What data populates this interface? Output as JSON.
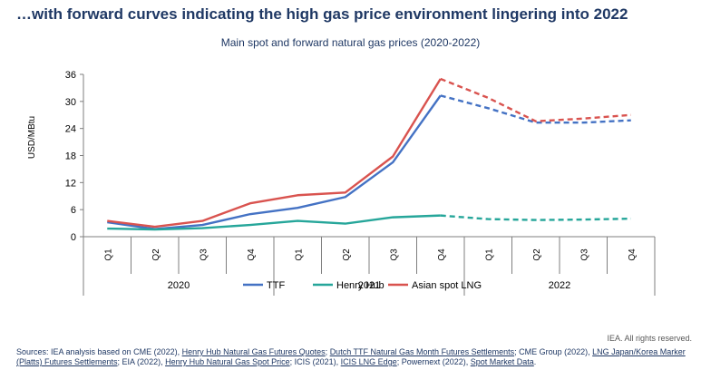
{
  "headline": "…with forward curves indicating the high gas price environment lingering into 2022",
  "credit": "IEA. All rights reserved.",
  "sources": {
    "prefix": "Sources: IEA analysis based on CME (2022), ",
    "link1": "Henry Hub Natural Gas Futures Quotes",
    "sep1": "; ",
    "link2": "Dutch TTF Natural Gas Month Futures Settlements",
    "mid1": "; CME Group (2022), ",
    "link3": "LNG Japan/Korea Marker (Platts) Futures Settlements",
    "mid2": "; EIA (2022), ",
    "link4": "Henry Hub Natural Gas Spot Price",
    "mid3": "; ICIS (2021), ",
    "link5": "ICIS LNG Edge",
    "mid4": "; Powernext (2022), ",
    "link6": "Spot Market Data",
    "suffix": "."
  },
  "chart_data": {
    "type": "line",
    "title": "Main spot and forward natural gas prices (2020-2022)",
    "ylabel": "USD/MBtu",
    "xlabel": "",
    "ylim": [
      0,
      36
    ],
    "yticks": [
      0,
      6,
      12,
      18,
      24,
      30,
      36
    ],
    "grid": false,
    "legend_position": "bottom",
    "categories": [
      "Q1",
      "Q2",
      "Q3",
      "Q4",
      "Q1",
      "Q2",
      "Q3",
      "Q4",
      "Q1",
      "Q2",
      "Q3",
      "Q4"
    ],
    "year_groups": [
      {
        "label": "2020",
        "quarters": 4
      },
      {
        "label": "2021",
        "quarters": 4
      },
      {
        "label": "2022",
        "quarters": 4
      }
    ],
    "forward_start_index": 7,
    "series": [
      {
        "name": "TTF",
        "color": "#4472c4",
        "values": [
          3.2,
          1.7,
          2.6,
          5.0,
          6.4,
          8.8,
          16.5,
          31.3,
          28.5,
          25.3,
          25.3,
          25.8
        ]
      },
      {
        "name": "Henry Hub",
        "color": "#26a69a",
        "values": [
          1.8,
          1.6,
          1.9,
          2.6,
          3.5,
          2.9,
          4.3,
          4.7,
          3.9,
          3.7,
          3.8,
          4.0
        ]
      },
      {
        "name": "Asian spot LNG",
        "color": "#d9534f",
        "values": [
          3.5,
          2.2,
          3.5,
          7.4,
          9.2,
          9.8,
          17.8,
          35.0,
          30.8,
          25.6,
          26.2,
          27.0
        ]
      }
    ]
  }
}
